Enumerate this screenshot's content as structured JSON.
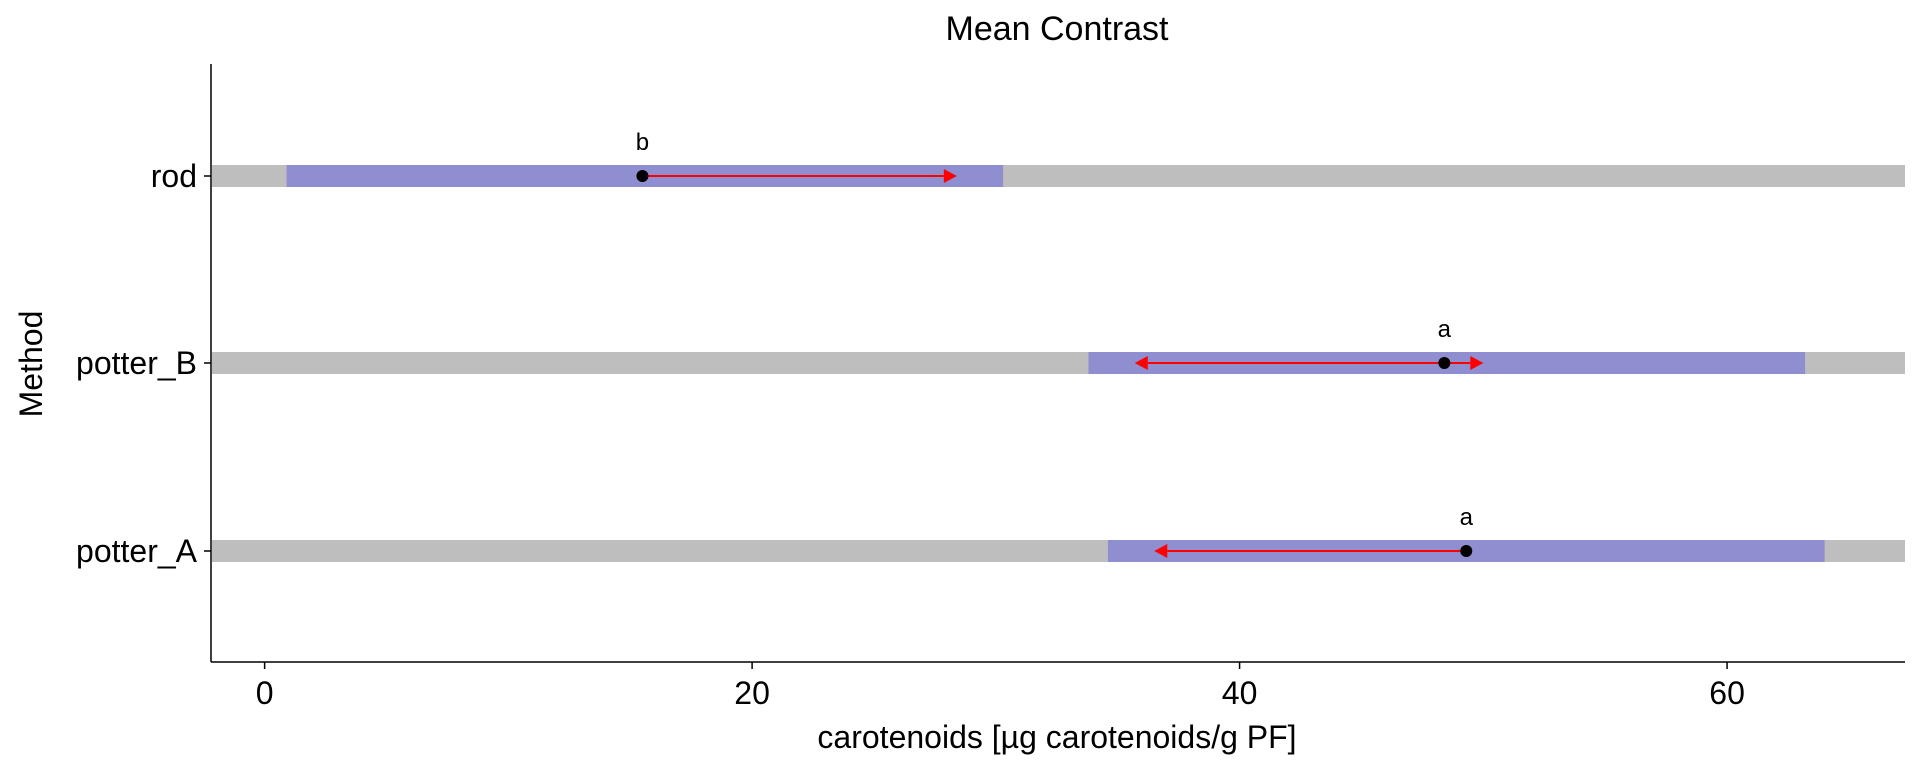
{
  "chart_data": {
    "type": "interval",
    "title": "Mean Contrast",
    "xlabel": "carotenoids [µg carotenoids/g PF]",
    "ylabel": "Method",
    "xlim": [
      -2.2,
      67.3
    ],
    "xticks": [
      0,
      20,
      40,
      60
    ],
    "grid": false,
    "legend": "none",
    "colors": {
      "background_band": "#bebebe",
      "interval": "#8e8ed0",
      "arrow": "#ff0000",
      "point": "#000000"
    },
    "categories": [
      "rod",
      "potter_B",
      "potter_A"
    ],
    "rows": [
      {
        "method": "rod",
        "estimate": 15.5,
        "ci_low": 0.9,
        "ci_high": 30.3,
        "arrow_low": 15.5,
        "arrow_high": 28.4,
        "group": "b"
      },
      {
        "method": "potter_B",
        "estimate": 48.4,
        "ci_low": 33.8,
        "ci_high": 63.2,
        "arrow_low": 35.7,
        "arrow_high": 50.0,
        "group": "a"
      },
      {
        "method": "potter_A",
        "estimate": 49.3,
        "ci_low": 34.6,
        "ci_high": 64.0,
        "arrow_low": 36.5,
        "arrow_high": 49.3,
        "group": "a"
      }
    ]
  }
}
